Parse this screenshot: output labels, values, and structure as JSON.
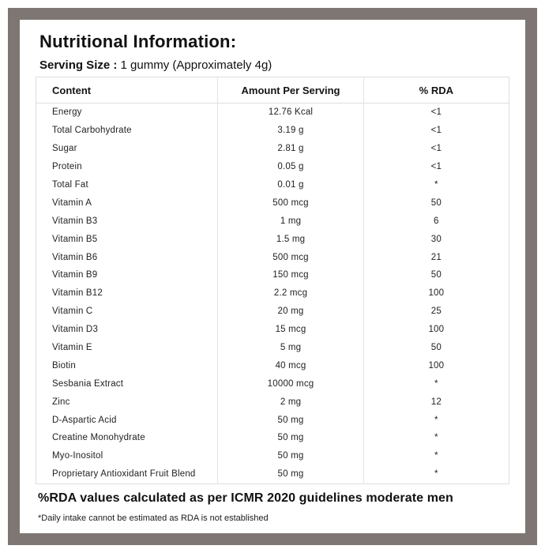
{
  "page": {
    "title": "Nutritional Information:",
    "serving_size_label": "Serving Size :",
    "serving_size_value": "1 gummy (Approximately 4g)"
  },
  "table": {
    "columns": [
      "Content",
      "Amount Per Serving",
      "% RDA"
    ],
    "rows": [
      [
        "Energy",
        "12.76 Kcal",
        "<1"
      ],
      [
        "Total Carbohydrate",
        "3.19 g",
        "<1"
      ],
      [
        "Sugar",
        "2.81 g",
        "<1"
      ],
      [
        "Protein",
        "0.05 g",
        "<1"
      ],
      [
        "Total Fat",
        "0.01 g",
        "*"
      ],
      [
        "Vitamin A",
        "500 mcg",
        "50"
      ],
      [
        "Vitamin B3",
        "1 mg",
        "6"
      ],
      [
        "Vitamin B5",
        "1.5 mg",
        "30"
      ],
      [
        "Vitamin B6",
        "500 mcg",
        "21"
      ],
      [
        "Vitamin B9",
        "150 mcg",
        "50"
      ],
      [
        "Vitamin B12",
        "2.2 mcg",
        "100"
      ],
      [
        "Vitamin C",
        "20 mg",
        "25"
      ],
      [
        "Vitamin D3",
        "15 mcg",
        "100"
      ],
      [
        "Vitamin E",
        "5 mg",
        "50"
      ],
      [
        "Biotin",
        "40 mcg",
        "100"
      ],
      [
        "Sesbania Extract",
        "10000 mcg",
        "*"
      ],
      [
        "Zinc",
        "2 mg",
        "12"
      ],
      [
        "D-Aspartic Acid",
        "50 mg",
        "*"
      ],
      [
        "Creatine Monohydrate",
        "50 mg",
        "*"
      ],
      [
        "Myo-Inositol",
        "50 mg",
        "*"
      ],
      [
        "Proprietary Antioxidant Fruit Blend",
        "50 mg",
        "*"
      ]
    ]
  },
  "footer": {
    "rda_note": "%RDA values calculated as per ICMR 2020 guidelines moderate men",
    "footnote": "*Daily intake cannot be estimated as RDA is not established"
  },
  "colors": {
    "frame": "#7e7672",
    "table_border": "#dedede",
    "text": "#1d1d1d"
  }
}
